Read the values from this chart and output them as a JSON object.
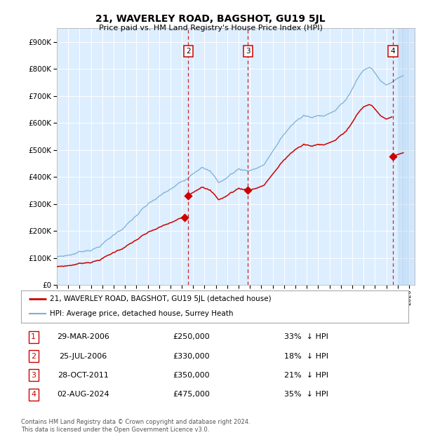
{
  "title": "21, WAVERLEY ROAD, BAGSHOT, GU19 5JL",
  "subtitle": "Price paid vs. HM Land Registry's House Price Index (HPI)",
  "ylabel_ticks": [
    "£0",
    "£100K",
    "£200K",
    "£300K",
    "£400K",
    "£500K",
    "£600K",
    "£700K",
    "£800K",
    "£900K"
  ],
  "ytick_values": [
    0,
    100000,
    200000,
    300000,
    400000,
    500000,
    600000,
    700000,
    800000,
    900000
  ],
  "ylim": [
    0,
    950000
  ],
  "xlim_start": 1995.0,
  "xlim_end": 2026.5,
  "transactions": [
    {
      "num": 1,
      "date_label": "29-MAR-2006",
      "price": 250000,
      "year": 2006.23,
      "pct": "33%",
      "dir": "↓"
    },
    {
      "num": 2,
      "date_label": "25-JUL-2006",
      "price": 330000,
      "year": 2006.56,
      "pct": "18%",
      "dir": "↓"
    },
    {
      "num": 3,
      "date_label": "28-OCT-2011",
      "price": 350000,
      "year": 2011.82,
      "pct": "21%",
      "dir": "↓"
    },
    {
      "num": 4,
      "date_label": "02-AUG-2024",
      "price": 475000,
      "year": 2024.58,
      "pct": "35%",
      "dir": "↓"
    }
  ],
  "legend_entries": [
    {
      "label": "21, WAVERLEY ROAD, BAGSHOT, GU19 5JL (detached house)",
      "color": "#cc0000",
      "lw": 1.5
    },
    {
      "label": "HPI: Average price, detached house, Surrey Heath",
      "color": "#7ab0d4",
      "lw": 1.2
    }
  ],
  "footer": "Contains HM Land Registry data © Crown copyright and database right 2024.\nThis data is licensed under the Open Government Licence v3.0.",
  "bg_color": "#ffffff",
  "plot_bg_color": "#ddeeff",
  "grid_color": "#ffffff",
  "hpi_color": "#7ab0d4",
  "price_color": "#cc0000",
  "marker_box_color": "#cc0000",
  "dashed_color": "#cc0000",
  "hpi_base_1995": 105000,
  "hpi_base_2006q1": 290000,
  "hpi_base_2006q3": 305000,
  "hpi_base_2011q4": 415000,
  "hpi_base_2024q3": 730000
}
